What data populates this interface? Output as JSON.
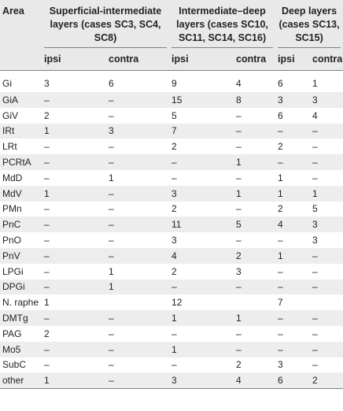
{
  "header": {
    "area": "Area",
    "groups": [
      "Superficial-intermediate layers (cases SC3, SC4, SC8)",
      "Intermediate–deep layers (cases SC10, SC11, SC14, SC16)",
      "Deep layers (cases SC13, SC15)"
    ],
    "sub": [
      "ipsi",
      "contra",
      "ipsi",
      "contra",
      "ipsi",
      "contra"
    ]
  },
  "rows": [
    [
      "Gi",
      "3",
      "6",
      "9",
      "4",
      "6",
      "1"
    ],
    [
      "GiA",
      "–",
      "–",
      "15",
      "8",
      "3",
      "3"
    ],
    [
      "GiV",
      "2",
      "–",
      "5",
      "–",
      "6",
      "4"
    ],
    [
      "IRt",
      "1",
      "3",
      "7",
      "–",
      "–",
      "–"
    ],
    [
      "LRt",
      "–",
      "–",
      "2",
      "–",
      "2",
      "–"
    ],
    [
      "PCRtA",
      "–",
      "–",
      "–",
      "1",
      "–",
      "–"
    ],
    [
      "MdD",
      "–",
      "1",
      "–",
      "–",
      "1",
      "–"
    ],
    [
      "MdV",
      "1",
      "–",
      "3",
      "1",
      "1",
      "1"
    ],
    [
      "PMn",
      "–",
      "–",
      "2",
      "–",
      "2",
      "5"
    ],
    [
      "PnC",
      "–",
      "–",
      "11",
      "5",
      "4",
      "3"
    ],
    [
      "PnO",
      "–",
      "–",
      "3",
      "–",
      "–",
      "3"
    ],
    [
      "PnV",
      "–",
      "–",
      "4",
      "2",
      "1",
      "–"
    ],
    [
      "LPGi",
      "–",
      "1",
      "2",
      "3",
      "–",
      "–"
    ],
    [
      "DPGi",
      "–",
      "1",
      "–",
      "–",
      "–",
      "–"
    ],
    [
      "N. raphe",
      "1",
      "",
      "12",
      "",
      "7",
      ""
    ],
    [
      "DMTg",
      "–",
      "–",
      "1",
      "1",
      "–",
      "–"
    ],
    [
      "PAG",
      "2",
      "–",
      "–",
      "–",
      "–",
      "–"
    ],
    [
      "Mo5",
      "–",
      "–",
      "1",
      "–",
      "–",
      "–"
    ],
    [
      "SubC",
      "–",
      "–",
      "–",
      "2",
      "3",
      "–"
    ],
    [
      "other",
      "1",
      "–",
      "3",
      "4",
      "6",
      "2"
    ]
  ]
}
